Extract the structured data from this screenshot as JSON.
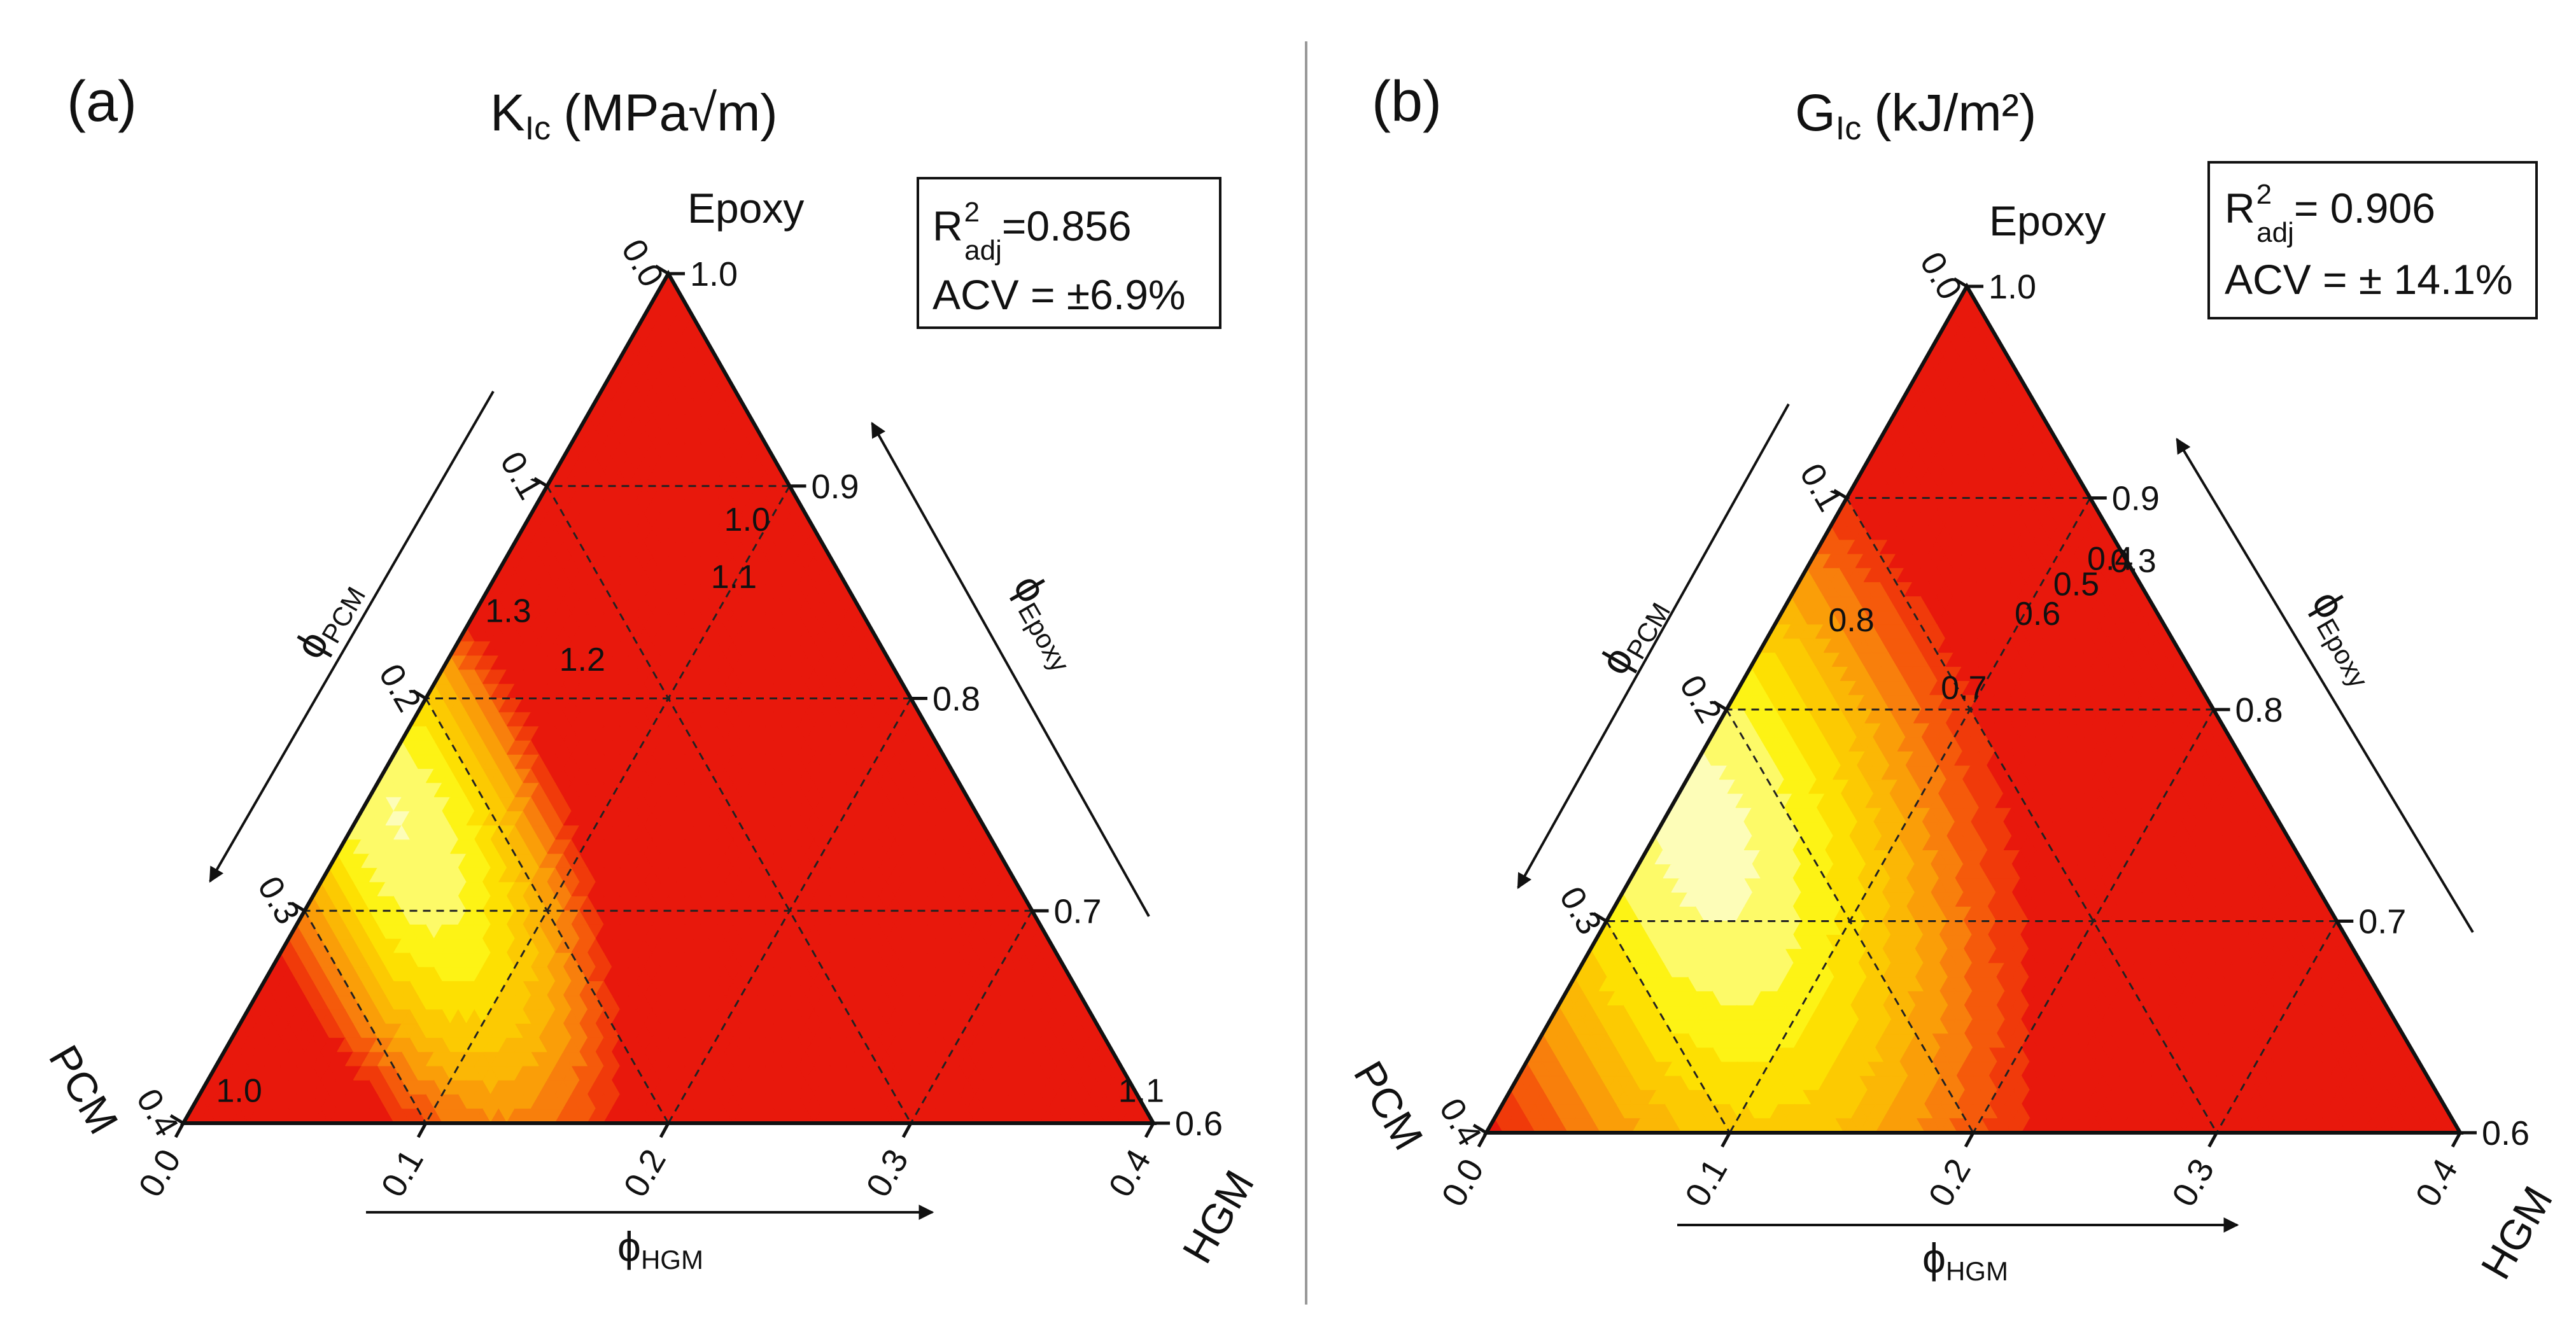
{
  "chart_data": [
    {
      "type": "ternary-contour",
      "panel_label": "(a)",
      "title": "K",
      "title_subscript": "Ic",
      "title_unit": "(MPa√m)",
      "stats": {
        "r2_label": "R",
        "r2_sup": "2",
        "r2_sub": "adj",
        "r2_value": "=0.856",
        "acv_text": "ACV = ±6.9%"
      },
      "vertices": {
        "top": "Epoxy",
        "left": "PCM",
        "right": "HGM"
      },
      "axes": {
        "epoxy": {
          "label": "ϕ",
          "label_sub": "Epoxy",
          "range": [
            0.6,
            1.0
          ],
          "ticks": [
            1.0,
            0.9,
            0.8,
            0.7,
            0.6
          ],
          "tick_labels": [
            "1.0",
            "0.9",
            "0.8",
            "0.7",
            "0.6"
          ]
        },
        "pcm": {
          "label": "ϕ",
          "label_sub": "PCM",
          "range": [
            0.0,
            0.4
          ],
          "ticks": [
            0.0,
            0.1,
            0.2,
            0.3,
            0.4
          ],
          "tick_labels": [
            "0.0",
            "0.1",
            "0.2",
            "0.3",
            "0.4"
          ]
        },
        "hgm": {
          "label": "ϕ",
          "label_sub": "HGM",
          "range": [
            0.0,
            0.4
          ],
          "ticks": [
            0.0,
            0.1,
            0.2,
            0.3,
            0.4
          ],
          "tick_labels": [
            "0.0",
            "0.1",
            "0.2",
            "0.3",
            "0.4"
          ]
        }
      },
      "contour_labels": [
        {
          "text": "1.3",
          "pcm": 0.148,
          "hgm": 0.016
        },
        {
          "text": "1.2",
          "pcm": 0.129,
          "hgm": 0.058
        },
        {
          "text": "1.1",
          "pcm": 0.047,
          "hgm": 0.101
        },
        {
          "text": "1.0",
          "pcm": 0.028,
          "hgm": 0.093
        },
        {
          "text": "1.0",
          "pcm": 0.372,
          "hgm": 0.018
        },
        {
          "text": "1.1",
          "pcm": 0.0,
          "hgm": 0.39
        }
      ],
      "colors": {
        "levels": [
          "#e8180c",
          "#f03a0a",
          "#f55a0b",
          "#f87f0c",
          "#fa9e08",
          "#fbb705",
          "#fcca02",
          "#fde002",
          "#fdf315",
          "#fdfa68",
          "#fdfdb8"
        ]
      }
    },
    {
      "type": "ternary-contour",
      "panel_label": "(b)",
      "title": "G",
      "title_subscript": "Ic",
      "title_unit": "(kJ/m²)",
      "stats": {
        "r2_label": "R",
        "r2_sup": "2",
        "r2_sub": "adj",
        "r2_value": "= 0.906",
        "acv_text": "ACV = ± 14.1%"
      },
      "vertices": {
        "top": "Epoxy",
        "left": "PCM",
        "right": "HGM"
      },
      "axes": {
        "epoxy": {
          "label": "ϕ",
          "label_sub": "Epoxy",
          "range": [
            0.6,
            1.0
          ],
          "ticks": [
            1.0,
            0.9,
            0.8,
            0.7,
            0.6
          ],
          "tick_labels": [
            "1.0",
            "0.9",
            "0.8",
            "0.7",
            "0.6"
          ]
        },
        "pcm": {
          "label": "ϕ",
          "label_sub": "PCM",
          "range": [
            0.0,
            0.4
          ],
          "ticks": [
            0.0,
            0.1,
            0.2,
            0.3,
            0.4
          ],
          "tick_labels": [
            "0.0",
            "0.1",
            "0.2",
            "0.3",
            "0.4"
          ]
        },
        "hgm": {
          "label": "ϕ",
          "label_sub": "HGM",
          "range": [
            0.0,
            0.4
          ],
          "ticks": [
            0.0,
            0.1,
            0.2,
            0.3,
            0.4
          ],
          "tick_labels": [
            "0.0",
            "0.1",
            "0.2",
            "0.3",
            "0.4"
          ]
        }
      },
      "contour_labels": [
        {
          "text": "0.8",
          "pcm": 0.13,
          "hgm": 0.033
        },
        {
          "text": "0.7",
          "pcm": 0.1,
          "hgm": 0.095
        },
        {
          "text": "0.6",
          "pcm": 0.052,
          "hgm": 0.108
        },
        {
          "text": "0.5",
          "pcm": 0.029,
          "hgm": 0.117
        },
        {
          "text": "0.4",
          "pcm": 0.009,
          "hgm": 0.125
        },
        {
          "text": "0.3",
          "pcm": 0.0,
          "hgm": 0.135
        }
      ],
      "colors": {
        "levels": [
          "#e8180c",
          "#f03a0a",
          "#f55a0b",
          "#f87f0c",
          "#fa9e08",
          "#fbb705",
          "#fcca02",
          "#fde002",
          "#fdf315",
          "#fdfa68",
          "#fdfdb8"
        ]
      }
    }
  ]
}
